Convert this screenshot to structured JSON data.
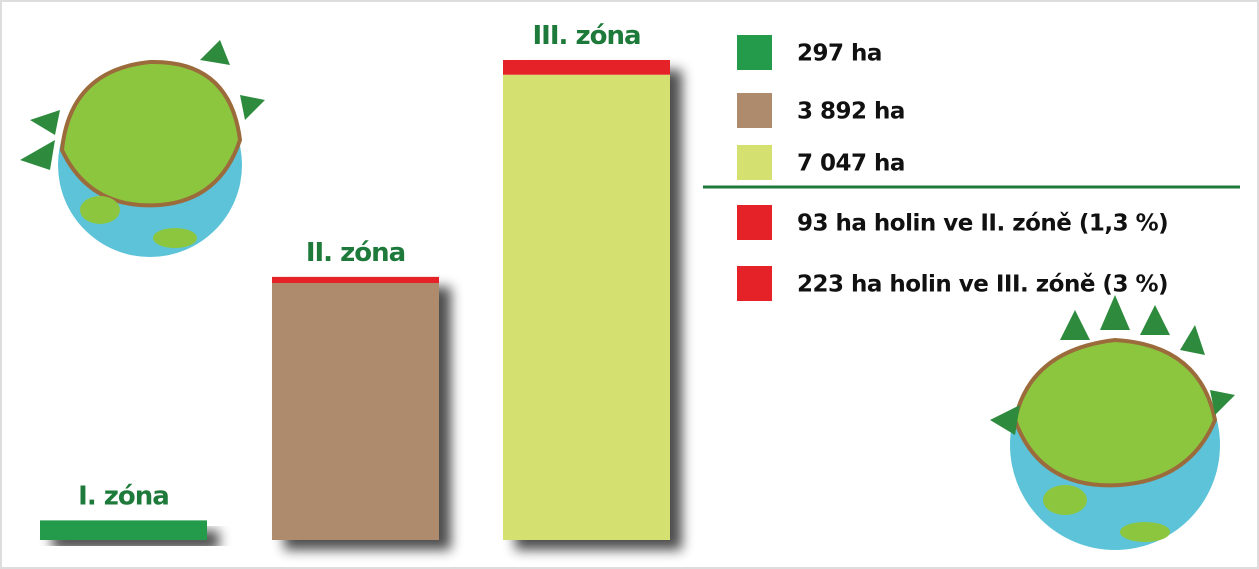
{
  "chart_data": {
    "type": "bar",
    "stacked": true,
    "categories": [
      "I. zóna",
      "II. zóna",
      "III. zóna"
    ],
    "series": [
      {
        "colors": [
          "#239b4b",
          "#ad8b6c",
          "#d4e06f"
        ],
        "values": [
          297,
          3892,
          7047
        ]
      },
      {
        "color": "#e52228",
        "values": [
          null,
          93,
          223
        ]
      }
    ],
    "legend": [
      {
        "label": "297 ha",
        "color": "#239b4b"
      },
      {
        "label": "3 892 ha",
        "color": "#ad8b6c"
      },
      {
        "label": "7 047 ha",
        "color": "#d4e06f"
      },
      {
        "label": "93 ha holin ve II. zóně (1,3 %)",
        "color": "#e52228"
      },
      {
        "label": "223 ha holin ve III. zóně (3 %)",
        "color": "#e52228"
      }
    ]
  }
}
